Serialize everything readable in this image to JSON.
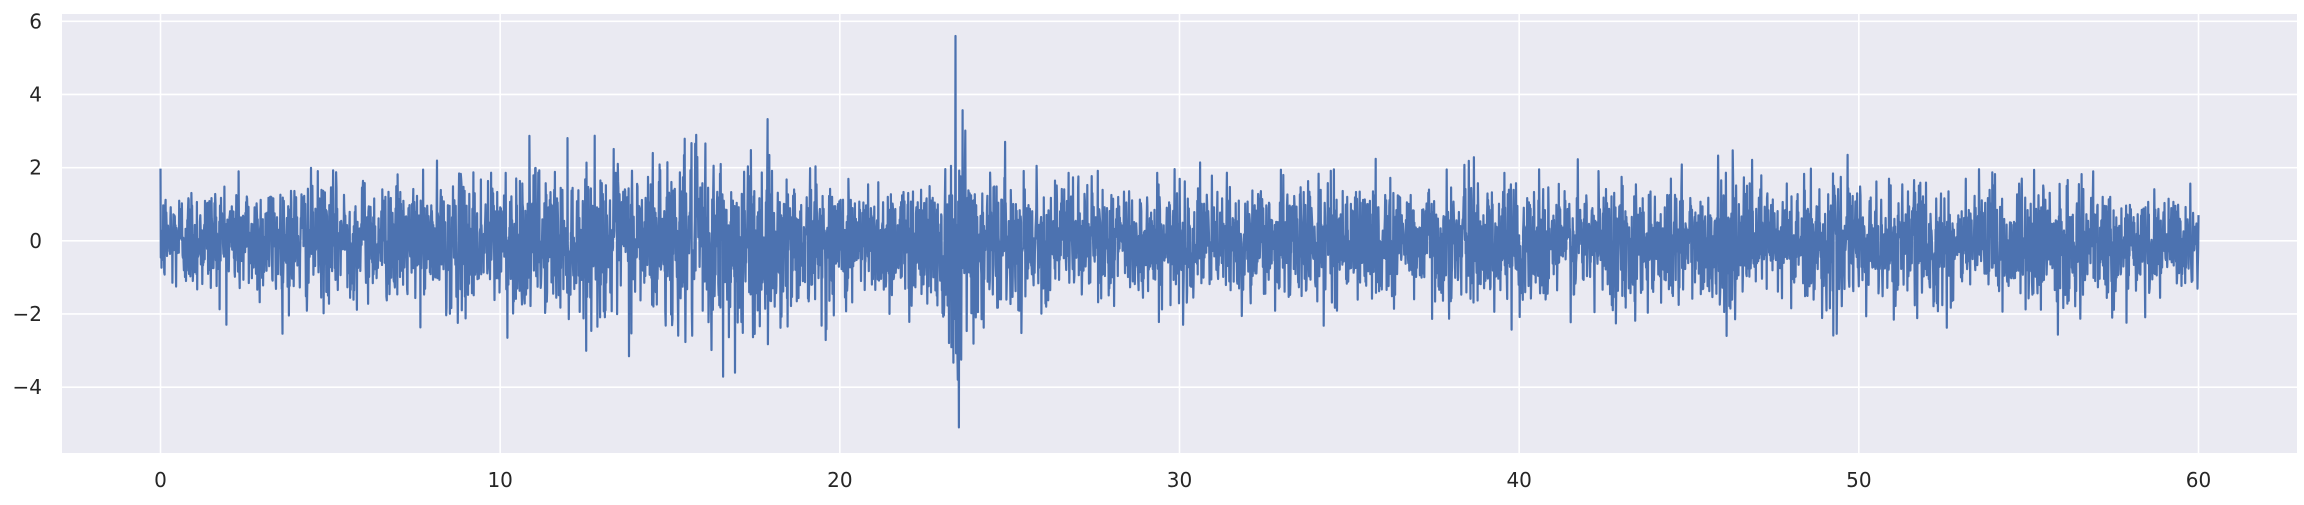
{
  "chart_data": {
    "type": "line",
    "title": "",
    "xlabel": "",
    "ylabel": "",
    "xlim": [
      -2.9,
      62.9
    ],
    "ylim": [
      -5.8,
      6.2
    ],
    "x_ticks": [
      0,
      10,
      20,
      30,
      40,
      50,
      60
    ],
    "y_ticks": [
      -4,
      -2,
      0,
      2,
      4,
      6
    ],
    "x_tick_labels": [
      "0",
      "10",
      "20",
      "30",
      "40",
      "50",
      "60"
    ],
    "y_tick_labels": [
      "−4",
      "−2",
      "0",
      "2",
      "4",
      "6"
    ],
    "grid": true,
    "background_color": "#eaeaf2",
    "series": [
      {
        "color": "#4c72b0",
        "x_range": [
          0,
          60
        ],
        "n_points": 6000,
        "approx_envelope": {
          "x": [
            0,
            2,
            4,
            6,
            8,
            10,
            12,
            14,
            15.5,
            16.5,
            17.5,
            19,
            21,
            22.5,
            23.3,
            23.5,
            23.8,
            24.5,
            26,
            30,
            35,
            40,
            45,
            50,
            55,
            60
          ],
          "upper": [
            2.2,
            2.5,
            2.6,
            2.4,
            2.4,
            3.0,
            2.9,
            3.3,
            3.6,
            3.9,
            3.5,
            2.8,
            2.4,
            2.6,
            4.2,
            5.6,
            4.1,
            2.8,
            2.4,
            2.3,
            2.4,
            2.5,
            2.5,
            2.4,
            2.4,
            1.6
          ],
          "lower": [
            -2.1,
            -2.3,
            -2.6,
            -2.3,
            -2.6,
            -3.0,
            -2.9,
            -3.3,
            -3.5,
            -4.5,
            -3.8,
            -2.8,
            -2.5,
            -2.6,
            -4.4,
            -5.1,
            -4.0,
            -2.8,
            -2.3,
            -2.4,
            -2.4,
            -2.6,
            -2.6,
            -2.6,
            -2.7,
            -1.9
          ]
        },
        "peak": {
          "x": 23.4,
          "y": 5.6
        },
        "trough": {
          "x": 23.5,
          "y": -5.1
        }
      }
    ]
  }
}
